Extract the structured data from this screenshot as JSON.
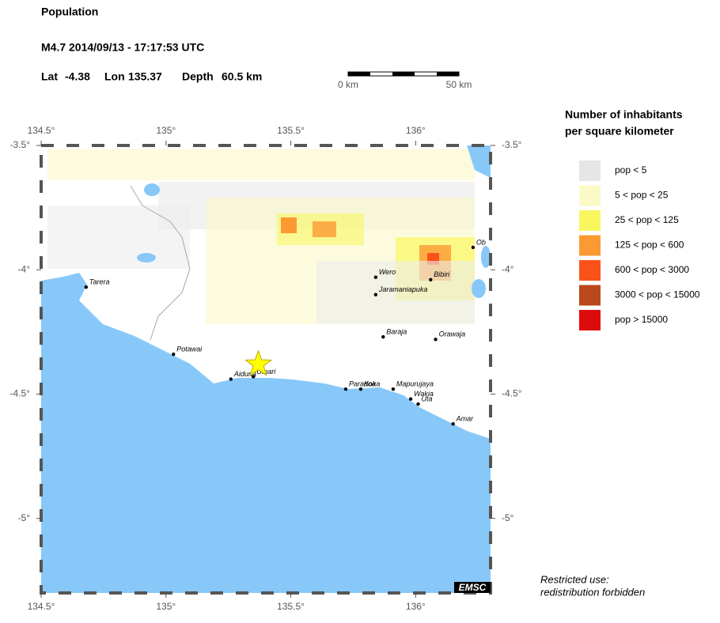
{
  "header": {
    "title": "Population",
    "event": "M4.7  2014/09/13 - 17:17:53 UTC",
    "lat_label": "Lat",
    "lat": -4.38,
    "lon_label": "Lon",
    "lon": 135.37,
    "depth_label": "Depth",
    "depth": "60.5 km"
  },
  "scale_bar": {
    "start": "0 km",
    "end": "50 km"
  },
  "map": {
    "lonlim": [
      134.5,
      136.3
    ],
    "latlim": [
      -5.3,
      -3.5
    ],
    "lon_ticks": [
      {
        "value": 134.5,
        "label": "134.5°"
      },
      {
        "value": 135,
        "label": "135°"
      },
      {
        "value": 135.5,
        "label": "135.5°"
      },
      {
        "value": 136,
        "label": "136°"
      }
    ],
    "lat_ticks": [
      {
        "value": -3.5,
        "label": "-3.5°"
      },
      {
        "value": -4,
        "label": "-4°"
      },
      {
        "value": -4.5,
        "label": "-4.5°"
      },
      {
        "value": -5,
        "label": "-5°"
      }
    ],
    "cities": [
      {
        "name": "Tarera",
        "lon": 134.68,
        "lat": -4.07
      },
      {
        "name": "Potawai",
        "lon": 135.03,
        "lat": -4.34
      },
      {
        "name": "Aiduna",
        "lon": 135.26,
        "lat": -4.44
      },
      {
        "name": "Umari",
        "lon": 135.35,
        "lat": -4.43
      },
      {
        "name": "Wero",
        "lon": 135.84,
        "lat": -4.03
      },
      {
        "name": "Bibiri",
        "lon": 136.06,
        "lat": -4.04
      },
      {
        "name": "Jaramaniapuka",
        "lon": 135.84,
        "lat": -4.1
      },
      {
        "name": "Ob",
        "lon": 136.23,
        "lat": -3.91
      },
      {
        "name": "Baraja",
        "lon": 135.87,
        "lat": -4.27
      },
      {
        "name": "Orawaja",
        "lon": 136.08,
        "lat": -4.28
      },
      {
        "name": "Paradoa",
        "lon": 135.72,
        "lat": -4.48
      },
      {
        "name": "Koka",
        "lon": 135.78,
        "lat": -4.48
      },
      {
        "name": "Mapurujaya",
        "lon": 135.91,
        "lat": -4.48
      },
      {
        "name": "Wakia",
        "lon": 135.98,
        "lat": -4.52
      },
      {
        "name": "Uta",
        "lon": 136.01,
        "lat": -4.54
      },
      {
        "name": "Amar",
        "lon": 136.15,
        "lat": -4.62
      }
    ],
    "badge": "EMSC"
  },
  "legend": {
    "title_line1": "Number of inhabitants",
    "title_line2": "per square kilometer",
    "items": [
      {
        "label": "pop < 5",
        "color": "#e6e6e6"
      },
      {
        "label": "5 < pop < 25",
        "color": "#fbf9c6"
      },
      {
        "label": "25 < pop < 125",
        "color": "#f9f760"
      },
      {
        "label": "125 < pop < 600",
        "color": "#fb9a33"
      },
      {
        "label": "600 < pop < 3000",
        "color": "#fb5219"
      },
      {
        "label": "3000 < pop < 15000",
        "color": "#b9481a"
      },
      {
        "label": "pop > 15000",
        "color": "#dd0c0c"
      }
    ]
  },
  "footer": {
    "line1": "Restricted use:",
    "line2": "redistribution forbidden"
  }
}
